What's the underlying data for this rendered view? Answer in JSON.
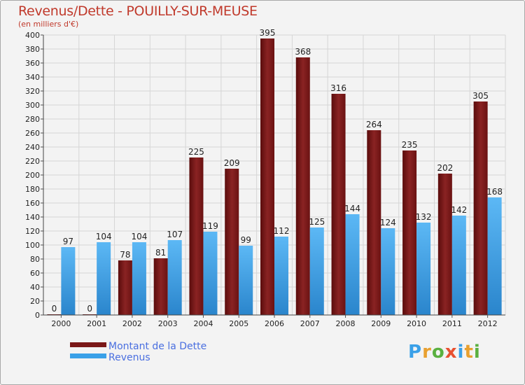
{
  "chart_data": {
    "type": "bar",
    "title": "Revenus/Dette - POUILLY-SUR-MEUSE",
    "subtitle": "(en milliers d'€)",
    "categories": [
      "2000",
      "2001",
      "2002",
      "2003",
      "2004",
      "2005",
      "2006",
      "2007",
      "2008",
      "2009",
      "2010",
      "2011",
      "2012"
    ],
    "series": [
      {
        "name": "Montant de la Dette",
        "color": "#7a1818",
        "values": [
          0,
          0,
          78,
          81,
          225,
          209,
          395,
          368,
          316,
          264,
          235,
          202,
          305
        ]
      },
      {
        "name": "Revenus",
        "color": "#3aa0e8",
        "values": [
          97,
          104,
          104,
          107,
          119,
          99,
          112,
          125,
          144,
          124,
          132,
          142,
          168
        ]
      }
    ],
    "ylim": [
      0,
      400
    ],
    "ytick_step": 20,
    "grid": true,
    "legend": "bottom-left"
  },
  "logo": {
    "text": "Proxiti"
  }
}
